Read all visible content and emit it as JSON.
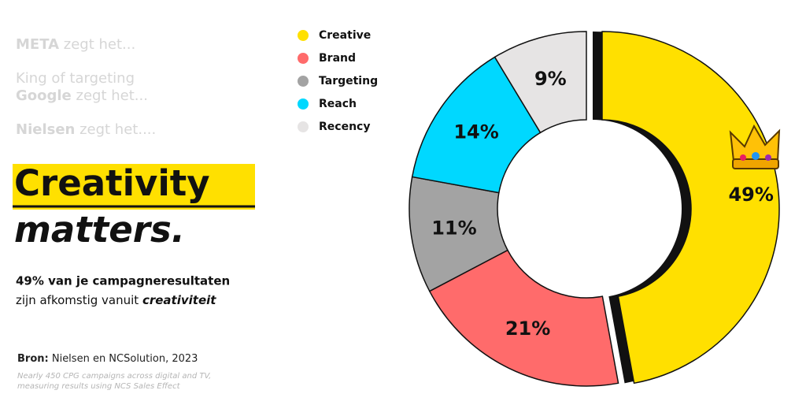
{
  "slide": {
    "lines": [
      {
        "bold": "META",
        "rest": " zegt het..."
      },
      {
        "rest": "King of targeting"
      },
      {
        "bold": "Google",
        "rest": " zegt het..."
      },
      {
        "bold": "Nielsen",
        "rest": " zegt het...."
      }
    ],
    "headline": [
      "Creativity",
      "matters."
    ],
    "statement": {
      "line1": "49% van je campagneresultaten",
      "line2": "zijn afkomstig vanuit ",
      "emphasis": "creativiteit"
    },
    "source": {
      "label": "Bron:",
      "text": " Nielsen en NCSolution, 2023"
    },
    "note": [
      "Nearly 450 CPG campaigns across digital and TV,",
      "measuring results using NCS Sales Effect"
    ]
  },
  "chart_data": {
    "type": "donut",
    "categories": [
      "Creative",
      "Brand",
      "Targeting",
      "Reach",
      "Recency"
    ],
    "values": [
      49,
      21,
      11,
      14,
      9
    ],
    "value_labels": [
      "49%",
      "21%",
      "11%",
      "14%",
      "9%"
    ],
    "colors": [
      "#ffe000",
      "#ff6b6b",
      "#a3a3a3",
      "#00d8ff",
      "#e6e4e4"
    ],
    "legend": "top-left"
  }
}
